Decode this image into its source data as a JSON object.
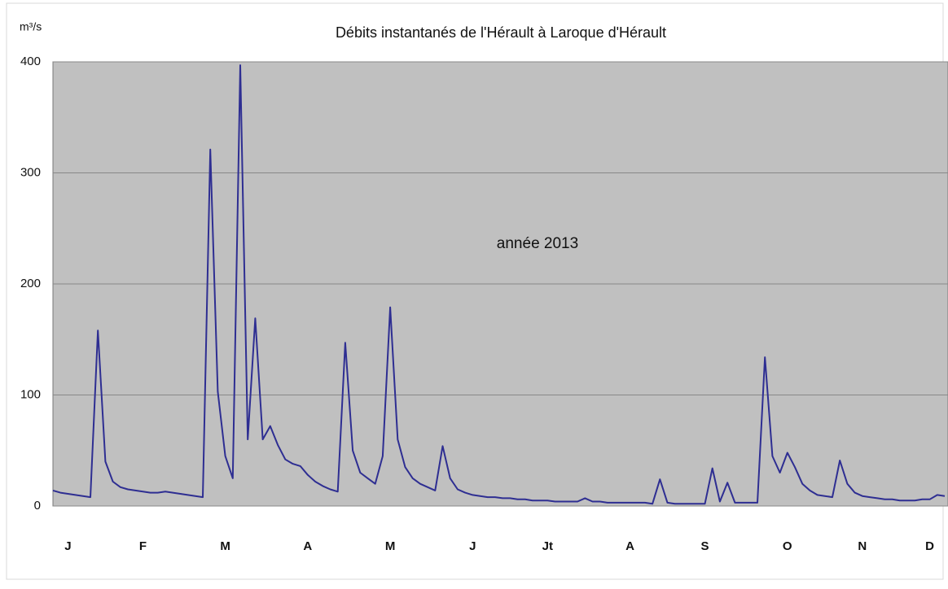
{
  "chart_data": {
    "type": "line",
    "title": "Débits instantanés de l'Hérault à Laroque d'Hérault",
    "y_label": "m³/s",
    "annotation": "année 2013",
    "categories": [
      null,
      null,
      "J",
      null,
      null,
      null,
      null,
      null,
      null,
      null,
      null,
      null,
      "F",
      null,
      null,
      null,
      null,
      null,
      null,
      null,
      null,
      null,
      null,
      "M",
      null,
      null,
      null,
      null,
      null,
      null,
      null,
      null,
      null,
      null,
      "A",
      null,
      null,
      null,
      null,
      null,
      null,
      null,
      null,
      null,
      null,
      "M",
      null,
      null,
      null,
      null,
      null,
      null,
      null,
      null,
      null,
      null,
      "J",
      null,
      null,
      null,
      null,
      null,
      null,
      null,
      null,
      null,
      "Jt",
      null,
      null,
      null,
      null,
      null,
      null,
      null,
      null,
      null,
      null,
      "A",
      null,
      null,
      null,
      null,
      null,
      null,
      null,
      null,
      null,
      "S",
      null,
      null,
      null,
      null,
      null,
      null,
      null,
      null,
      null,
      null,
      "O",
      null,
      null,
      null,
      null,
      null,
      null,
      null,
      null,
      null,
      "N",
      null,
      null,
      null,
      null,
      null,
      null,
      null,
      null,
      "D",
      null,
      null
    ],
    "series": [
      {
        "color": "#2e2e92",
        "values": [
          14,
          12,
          11,
          10,
          9,
          8,
          158,
          40,
          22,
          17,
          15,
          14,
          13,
          12,
          12,
          13,
          12,
          11,
          10,
          9,
          8,
          321,
          103,
          45,
          25,
          397,
          60,
          169,
          60,
          72,
          55,
          42,
          38,
          36,
          28,
          22,
          18,
          15,
          13,
          147,
          50,
          30,
          25,
          20,
          45,
          179,
          60,
          35,
          25,
          20,
          17,
          14,
          54,
          25,
          15,
          12,
          10,
          9,
          8,
          8,
          7,
          7,
          6,
          6,
          5,
          5,
          5,
          4,
          4,
          4,
          4,
          7,
          4,
          4,
          3,
          3,
          3,
          3,
          3,
          3,
          2,
          24,
          3,
          2,
          2,
          2,
          2,
          2,
          34,
          4,
          21,
          3,
          3,
          3,
          3,
          134,
          45,
          30,
          48,
          35,
          20,
          14,
          10,
          9,
          8,
          41,
          20,
          12,
          9,
          8,
          7,
          6,
          6,
          5,
          5,
          5,
          6,
          6,
          10,
          9
        ]
      }
    ],
    "ylim": [
      0,
      400
    ],
    "yticks": [
      0,
      100,
      200,
      300,
      400
    ],
    "grid": true
  }
}
